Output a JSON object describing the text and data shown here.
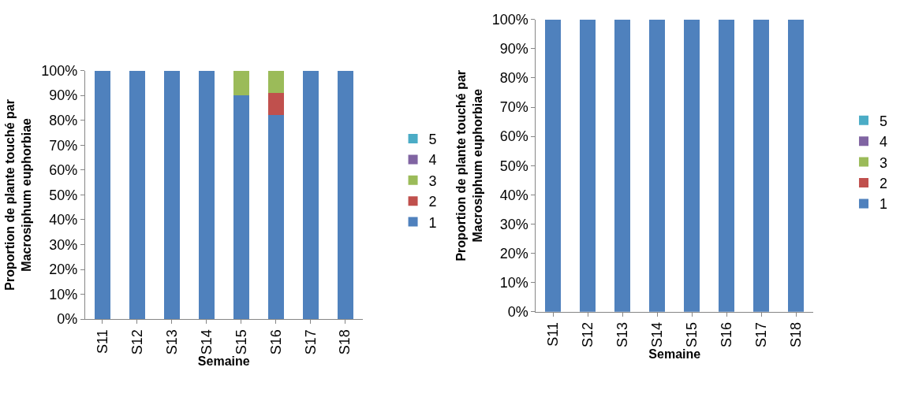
{
  "chart_data": [
    {
      "type": "bar",
      "stacked": true,
      "xlabel": "Semaine",
      "ylabel": "Proportion de plante touché par\nMacrosiphum euphorbiae",
      "categories": [
        "S11",
        "S12",
        "S13",
        "S14",
        "S15",
        "S16",
        "S17",
        "S18"
      ],
      "ylim": [
        0,
        100
      ],
      "yticks": [
        {
          "value": 0,
          "label": "0%"
        },
        {
          "value": 10,
          "label": "10%"
        },
        {
          "value": 20,
          "label": "20%"
        },
        {
          "value": 30,
          "label": "30%"
        },
        {
          "value": 40,
          "label": "40%"
        },
        {
          "value": 50,
          "label": "50%"
        },
        {
          "value": 60,
          "label": "60%"
        },
        {
          "value": 70,
          "label": "70%"
        },
        {
          "value": 80,
          "label": "80%"
        },
        {
          "value": 90,
          "label": "90%"
        },
        {
          "value": 100,
          "label": "100%"
        }
      ],
      "legend": "right",
      "series": [
        {
          "name": "1",
          "color": "#4f81bd",
          "values": [
            100,
            100,
            100,
            100,
            90,
            82,
            100,
            100
          ]
        },
        {
          "name": "2",
          "color": "#c0504d",
          "values": [
            0,
            0,
            0,
            0,
            0,
            9,
            0,
            0
          ]
        },
        {
          "name": "3",
          "color": "#9bbb59",
          "values": [
            0,
            0,
            0,
            0,
            10,
            9,
            0,
            0
          ]
        },
        {
          "name": "4",
          "color": "#8064a2",
          "values": [
            0,
            0,
            0,
            0,
            0,
            0,
            0,
            0
          ]
        },
        {
          "name": "5",
          "color": "#4bacc6",
          "values": [
            0,
            0,
            0,
            0,
            0,
            0,
            0,
            0
          ]
        }
      ]
    },
    {
      "type": "bar",
      "stacked": true,
      "xlabel": "Semaine",
      "ylabel": "Proportion de plante touché par\nMacrosiphum euphorbiae",
      "categories": [
        "S11",
        "S12",
        "S13",
        "S14",
        "S15",
        "S16",
        "S17",
        "S18"
      ],
      "ylim": [
        0,
        100
      ],
      "yticks": [
        {
          "value": 0,
          "label": "0%"
        },
        {
          "value": 10,
          "label": "10%"
        },
        {
          "value": 20,
          "label": "20%"
        },
        {
          "value": 30,
          "label": "30%"
        },
        {
          "value": 40,
          "label": "40%"
        },
        {
          "value": 50,
          "label": "50%"
        },
        {
          "value": 60,
          "label": "60%"
        },
        {
          "value": 70,
          "label": "70%"
        },
        {
          "value": 80,
          "label": "80%"
        },
        {
          "value": 90,
          "label": "90%"
        },
        {
          "value": 100,
          "label": "100%"
        }
      ],
      "legend": "right",
      "series": [
        {
          "name": "1",
          "color": "#4f81bd",
          "values": [
            100,
            100,
            100,
            100,
            100,
            100,
            100,
            100
          ]
        },
        {
          "name": "2",
          "color": "#c0504d",
          "values": [
            0,
            0,
            0,
            0,
            0,
            0,
            0,
            0
          ]
        },
        {
          "name": "3",
          "color": "#9bbb59",
          "values": [
            0,
            0,
            0,
            0,
            0,
            0,
            0,
            0
          ]
        },
        {
          "name": "4",
          "color": "#8064a2",
          "values": [
            0,
            0,
            0,
            0,
            0,
            0,
            0,
            0
          ]
        },
        {
          "name": "5",
          "color": "#4bacc6",
          "values": [
            0,
            0,
            0,
            0,
            0,
            0,
            0,
            0
          ]
        }
      ]
    }
  ]
}
